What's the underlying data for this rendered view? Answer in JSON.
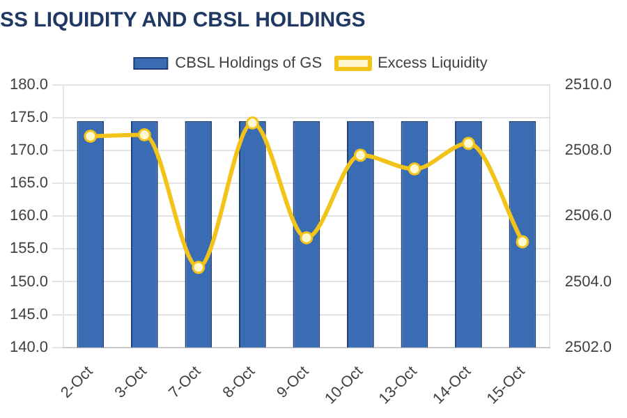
{
  "chart_data": {
    "type": "bar",
    "title": "SS LIQUIDITY AND CBSL HOLDINGS",
    "categories": [
      "2-Oct",
      "3-Oct",
      "7-Oct",
      "8-Oct",
      "9-Oct",
      "10-Oct",
      "13-Oct",
      "14-Oct",
      "15-Oct"
    ],
    "series": [
      {
        "name": "CBSL Holdings of GS",
        "axis": "y2",
        "color": "#3a6cb4",
        "values": [
          2508.9,
          2508.9,
          2508.9,
          2508.9,
          2508.9,
          2508.9,
          2508.9,
          2508.9,
          2508.9
        ]
      },
      {
        "name": "Excess Liquidity",
        "type": "line",
        "axis": "y",
        "color": "#f2c318",
        "values": [
          172.2,
          172.4,
          152.2,
          174.2,
          156.7,
          169.3,
          167.2,
          171.1,
          156.1
        ]
      }
    ],
    "ylim": [
      140,
      180
    ],
    "yticks": [
      {
        "value": 140,
        "label": "140.0"
      },
      {
        "value": 145,
        "label": "145.0"
      },
      {
        "value": 150,
        "label": "150.0"
      },
      {
        "value": 155,
        "label": "155.0"
      },
      {
        "value": 160,
        "label": "160.0"
      },
      {
        "value": 165,
        "label": "165.0"
      },
      {
        "value": 170,
        "label": "170.0"
      },
      {
        "value": 175,
        "label": "175.0"
      },
      {
        "value": 180,
        "label": "180.0"
      }
    ],
    "y2lim": [
      2502,
      2510
    ],
    "y2ticks": [
      {
        "value": 2502,
        "label": "2502.0"
      },
      {
        "value": 2504,
        "label": "2504.0"
      },
      {
        "value": 2506,
        "label": "2506.0"
      },
      {
        "value": 2508,
        "label": "2508.0"
      },
      {
        "value": 2510,
        "label": "2510.0"
      }
    ],
    "grid": "y",
    "legend": "top",
    "marker": "circle"
  }
}
